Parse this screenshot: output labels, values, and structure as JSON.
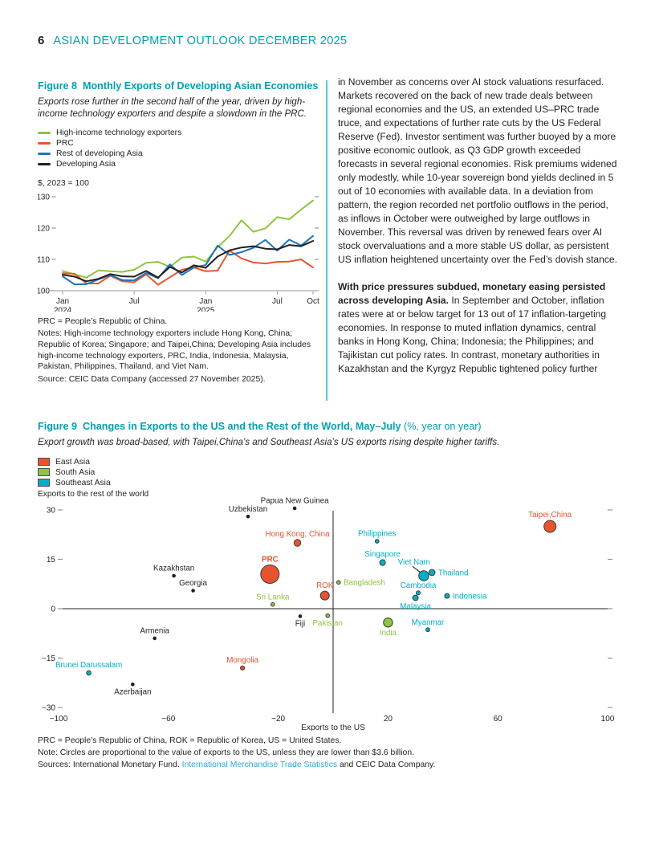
{
  "page": {
    "page_number": "6",
    "header_title": "ASIAN DEVELOPMENT OUTLOOK DECEMBER 2025"
  },
  "colors": {
    "teal_heading": "#00a1b0",
    "divider_teal": "#5bc6d0",
    "link_blue": "#2aa9da",
    "body_text": "#231f20",
    "axis_gray": "#939598"
  },
  "figure8": {
    "label": "Figure 8",
    "title": "Monthly Exports of Developing Asian Economies",
    "subtitle": "Exports rose further in the second half of the year, driven by high-income technology exporters and despite a slowdown in the PRC.",
    "unit_label": "$, 2023 = 100",
    "notes": [
      "PRC = People’s Republic of China.",
      "Notes: High-income technology exporters include Hong Kong, China; Republic of Korea; Singapore; and Taipei,China; Developing Asia includes high-income technology exporters, PRC, India, Indonesia, Malaysia, Pakistan, Philippines, Thailand, and Viet Nam.",
      "Source: CEIC Data Company (accessed 27 November 2025)."
    ]
  },
  "right_column": {
    "para1": "in November as concerns over AI stock valuations resurfaced. Markets recovered on the back of new trade deals between regional economies and the US, an extended US–PRC trade truce, and expectations of further rate cuts by the US Federal Reserve (Fed). Investor sentiment was further buoyed by a more positive economic outlook, as Q3 GDP growth exceeded forecasts in several regional economies. Risk premiums widened only modestly, while 10-year sovereign bond yields declined in 5 out of 10 economies with available data. In a deviation from pattern, the region recorded net portfolio outflows in the period, as inflows in October were outweighed by large outflows in November. This reversal was driven by renewed fears over AI stock overvaluations and a more stable US dollar, as persistent US inflation heightened uncertainty over the Fed’s dovish stance.",
    "para2_lead": "With price pressures subdued, monetary easing persisted across developing Asia.",
    "para2_rest": "In September and October, inflation rates were at or below target for 13 out of 17 inflation-targeting economies. In response to muted inflation dynamics, central banks in Hong Kong, China; Indonesia; the Philippines; and Tajikistan cut policy rates. In contrast, monetary authorities in Kazakhstan and the Kyrgyz Republic tightened policy further"
  },
  "figure9": {
    "label": "Figure 9",
    "title": "Changes in Exports to the US and the Rest of the World, May–July",
    "title_suffix": "(%, year on year)",
    "subtitle": "Export growth was broad-based, with Taipei,China’s and Southeast Asia’s US exports rising despite higher tariffs.",
    "abbrev": "PRC = People’s Republic of China, ROK = Republic of Korea, US = United States.",
    "note": "Note: Circles are proportional to the value of exports to the US, unless they are lower than $3.6 billion.",
    "sources_prefix": "Sources: International Monetary Fund. ",
    "sources_link": "International Merchandise Trade Statistics",
    "sources_suffix": " and CEIC Data Company."
  },
  "chart_data": [
    {
      "type": "line",
      "title": "Monthly Exports of Developing Asian Economies",
      "unit": "$, 2023 = 100",
      "ylim": [
        100,
        130
      ],
      "yticks": [
        100,
        110,
        120,
        130
      ],
      "right_ticks": [
        110,
        120,
        130
      ],
      "grid": false,
      "legend_position": "top-left",
      "months": [
        "Jan 2024",
        "Feb 2024",
        "Mar 2024",
        "Apr 2024",
        "May 2024",
        "Jun 2024",
        "Jul 2024",
        "Aug 2024",
        "Sep 2024",
        "Oct 2024",
        "Nov 2024",
        "Dec 2024",
        "Jan 2025",
        "Feb 2025",
        "Mar 2025",
        "Apr 2025",
        "May 2025",
        "Jun 2025",
        "Jul 2025",
        "Aug 2025",
        "Sep 2025",
        "Oct 2025"
      ],
      "x_ticks": [
        {
          "index": 0,
          "label": "Jan",
          "sublabel": "2024"
        },
        {
          "index": 6,
          "label": "Jul"
        },
        {
          "index": 12,
          "label": "Jan",
          "sublabel": "2025"
        },
        {
          "index": 18,
          "label": "Jul"
        },
        {
          "index": 21,
          "label": "Oct"
        }
      ],
      "series": [
        {
          "name": "High-income technology exporters",
          "color": "#8cc540",
          "values": [
            106.3,
            105.2,
            104.2,
            106.5,
            106.2,
            106.0,
            106.7,
            108.9,
            109.2,
            107.6,
            110.6,
            110.9,
            109.3,
            113.9,
            117.5,
            122.5,
            118.8,
            119.9,
            123.5,
            122.8,
            125.9,
            128.8
          ]
        },
        {
          "name": "PRC",
          "color": "#e8542e",
          "values": [
            105.6,
            105.4,
            102.3,
            102.3,
            104.8,
            103.0,
            102.7,
            105.2,
            101.9,
            104.3,
            106.7,
            107.4,
            106.2,
            106.4,
            112.8,
            110.3,
            109.0,
            108.7,
            109.2,
            109.3,
            110.0,
            107.4
          ]
        },
        {
          "name": "Rest of developing Asia",
          "color": "#1c75bc",
          "values": [
            104.6,
            102.0,
            102.1,
            103.6,
            105.0,
            103.4,
            103.3,
            105.7,
            104.0,
            108.4,
            105.0,
            107.4,
            108.2,
            114.4,
            111.4,
            112.3,
            113.7,
            116.2,
            112.8,
            116.3,
            114.4,
            117.5
          ]
        },
        {
          "name": "Developing Asia",
          "color": "#231f20",
          "values": [
            105.1,
            104.5,
            103.0,
            103.8,
            105.3,
            104.6,
            104.5,
            106.3,
            104.2,
            107.6,
            105.8,
            108.1,
            107.3,
            110.9,
            112.9,
            113.8,
            114.2,
            113.4,
            113.2,
            114.6,
            114.2,
            115.9
          ]
        }
      ]
    },
    {
      "type": "scatter",
      "title": "Changes in Exports to the US and the Rest of the World, May–July (%, year on year)",
      "xlabel": "Exports to the US",
      "ylabel": "Exports to the rest of the world",
      "xlim": [
        -100,
        100
      ],
      "ylim": [
        -32,
        33
      ],
      "xticks": [
        {
          "value": -100,
          "label": "−100"
        },
        {
          "value": -60,
          "label": "−60"
        },
        {
          "value": -20,
          "label": "−20"
        },
        {
          "value": 20,
          "label": "20"
        },
        {
          "value": 60,
          "label": "60"
        },
        {
          "value": 100,
          "label": "100"
        }
      ],
      "yticks": [
        {
          "value": 30,
          "label": "30"
        },
        {
          "value": 15,
          "label": "15"
        },
        {
          "value": 0,
          "label": "0"
        },
        {
          "value": -15,
          "label": "−15"
        },
        {
          "value": -30,
          "label": "−30"
        }
      ],
      "size_note": "Circles proportional to value of exports to the US",
      "groups": [
        {
          "name": "East Asia",
          "color": "#e8532f",
          "in_legend": true
        },
        {
          "name": "South Asia",
          "color": "#8cc540",
          "in_legend": true
        },
        {
          "name": "Southeast Asia",
          "color": "#00b0c6",
          "in_legend": true
        },
        {
          "name": "Other",
          "color": "#231f20",
          "in_legend": false
        }
      ],
      "points": [
        {
          "label": "PRC",
          "group": "East Asia",
          "x": -23,
          "y": 10.5,
          "r": 11.5,
          "label_pos": "top",
          "bold": true
        },
        {
          "label": "Hong Kong, China",
          "group": "East Asia",
          "x": -13,
          "y": 20,
          "r": 4.2,
          "label_pos": "top"
        },
        {
          "label": "ROK",
          "group": "East Asia",
          "x": -3,
          "y": 4,
          "r": 5.5,
          "label_pos": "top"
        },
        {
          "label": "Mongolia",
          "group": "East Asia",
          "x": -33,
          "y": -18,
          "r": 2.6,
          "label_pos": "top"
        },
        {
          "label": "Taipei,China",
          "group": "East Asia",
          "x": 79,
          "y": 25,
          "r": 7.5,
          "label_pos": "top"
        },
        {
          "label": "India",
          "group": "South Asia",
          "x": 20,
          "y": -4.2,
          "r": 5.7,
          "label_pos": "bottom"
        },
        {
          "label": "Bangladesh",
          "group": "South Asia",
          "x": 2,
          "y": 8,
          "r": 2.3,
          "label_pos": "right"
        },
        {
          "label": "Sri Lanka",
          "group": "South Asia",
          "x": -22,
          "y": 1.3,
          "r": 2.3,
          "label_pos": "top"
        },
        {
          "label": "Pakistan",
          "group": "South Asia",
          "x": -2,
          "y": -2.1,
          "r": 2.3,
          "label_pos": "bottom"
        },
        {
          "label": "Viet Nam",
          "group": "Southeast Asia",
          "x": 33,
          "y": 10,
          "r": 6.2,
          "label_pos": "top-line"
        },
        {
          "label": "Thailand",
          "group": "Southeast Asia",
          "x": 36,
          "y": 11,
          "r": 3.8,
          "label_pos": "right"
        },
        {
          "label": "Singapore",
          "group": "Southeast Asia",
          "x": 18,
          "y": 14,
          "r": 3.6,
          "label_pos": "top"
        },
        {
          "label": "Philippines",
          "group": "Southeast Asia",
          "x": 16,
          "y": 20.5,
          "r": 2.4,
          "label_pos": "top"
        },
        {
          "label": "Malaysia",
          "group": "Southeast Asia",
          "x": 30,
          "y": 3.3,
          "r": 3.4,
          "label_pos": "bottom"
        },
        {
          "label": "Cambodia",
          "group": "Southeast Asia",
          "x": 31,
          "y": 4.8,
          "r": 2.5,
          "label_pos": "top"
        },
        {
          "label": "Indonesia",
          "group": "Southeast Asia",
          "x": 41.5,
          "y": 3.9,
          "r": 3.0,
          "label_pos": "right"
        },
        {
          "label": "Myanmar",
          "group": "Southeast Asia",
          "x": 34.5,
          "y": -6.4,
          "r": 2.4,
          "label_pos": "top"
        },
        {
          "label": "Brunei Darussalam",
          "group": "Southeast Asia",
          "x": -89,
          "y": -19.5,
          "r": 2.8,
          "label_pos": "top"
        },
        {
          "label": "Kazakhstan",
          "group": "Other",
          "x": -58,
          "y": 10,
          "r": 2.3,
          "label_pos": "top"
        },
        {
          "label": "Georgia",
          "group": "Other",
          "x": -51,
          "y": 5.5,
          "r": 2.3,
          "label_pos": "top"
        },
        {
          "label": "Uzbekistan",
          "group": "Other",
          "x": -31,
          "y": 28,
          "r": 2.3,
          "label_pos": "top"
        },
        {
          "label": "Papua New Guinea",
          "group": "Other",
          "x": -14,
          "y": 30.5,
          "r": 2.3,
          "label_pos": "top"
        },
        {
          "label": "Fiji",
          "group": "Other",
          "x": -12,
          "y": -2.3,
          "r": 2.3,
          "label_pos": "bottom"
        },
        {
          "label": "Armenia",
          "group": "Other",
          "x": -65,
          "y": -9,
          "r": 2.3,
          "label_pos": "top"
        },
        {
          "label": "Azerbaijan",
          "group": "Other",
          "x": -73,
          "y": -23,
          "r": 2.3,
          "label_pos": "bottom"
        }
      ]
    }
  ]
}
